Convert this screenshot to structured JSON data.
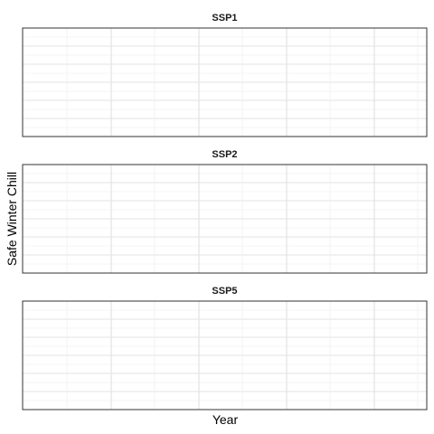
{
  "chart_data": {
    "type": "line",
    "layout": "facet-vertical",
    "xlabel": "Year",
    "ylabel": "Safe Winter Chill",
    "panels": [
      {
        "title": "SSP1",
        "series": []
      },
      {
        "title": "SSP2",
        "series": []
      },
      {
        "title": "SSP5",
        "series": []
      }
    ],
    "grid": true,
    "colors": {
      "panel_border": "#333333",
      "grid_major": "#e3e3e3",
      "grid_minor": "#f0f0f0",
      "background": "#ffffff"
    }
  }
}
